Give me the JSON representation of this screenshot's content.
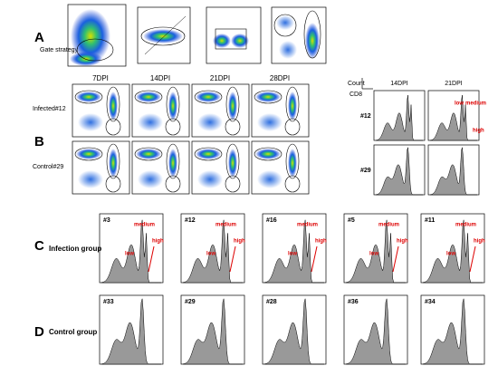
{
  "panel_a": {
    "label": "A",
    "title": "Gate strategy"
  },
  "panel_b": {
    "label": "B",
    "columns": [
      "7DPI",
      "14DPI",
      "21DPI",
      "28DPI"
    ],
    "rows": [
      "Infected#12",
      "Control#29"
    ],
    "hist": {
      "y_label": "Count",
      "x_label": "CD8",
      "columns": [
        "14DPI",
        "21DPI"
      ],
      "rows": [
        "#12",
        "#29"
      ],
      "annotations": [
        "low",
        "medium",
        "high"
      ]
    }
  },
  "panel_c": {
    "label": "C",
    "group": "Infection group",
    "samples": [
      "#3",
      "#12",
      "#16",
      "#5",
      "#11"
    ],
    "annotations": [
      "low",
      "medium",
      "high"
    ]
  },
  "panel_d": {
    "label": "D",
    "group": "Control group",
    "samples": [
      "#33",
      "#29",
      "#28",
      "#36",
      "#34"
    ]
  }
}
